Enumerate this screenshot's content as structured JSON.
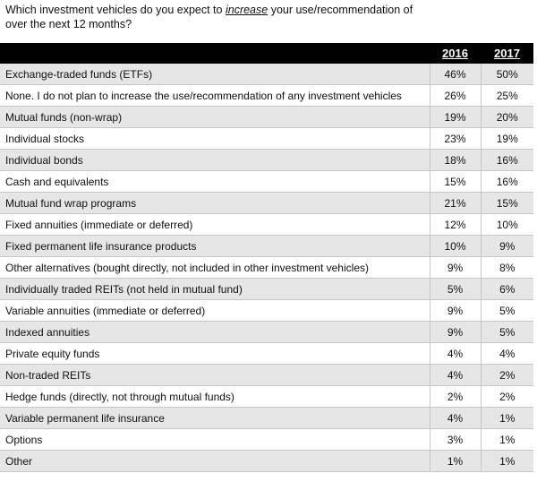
{
  "question": {
    "pre": "Which investment vehicles do you expect to ",
    "emph": "increase",
    "post": " your use/recommendation of over the next 12 months?"
  },
  "table": {
    "headers": [
      "",
      "2016",
      "2017"
    ],
    "rows": [
      {
        "label": "Exchange-traded funds (ETFs)",
        "y2016": "46%",
        "y2017": "50%"
      },
      {
        "label": "None. I do not plan to increase the use/recommendation of any investment vehicles",
        "y2016": "26%",
        "y2017": "25%"
      },
      {
        "label": "Mutual funds (non-wrap)",
        "y2016": "19%",
        "y2017": "20%"
      },
      {
        "label": "Individual stocks",
        "y2016": "23%",
        "y2017": "19%"
      },
      {
        "label": "Individual bonds",
        "y2016": "18%",
        "y2017": "16%"
      },
      {
        "label": "Cash and equivalents",
        "y2016": "15%",
        "y2017": "16%"
      },
      {
        "label": "Mutual fund wrap programs",
        "y2016": "21%",
        "y2017": "15%"
      },
      {
        "label": "Fixed annuities (immediate or deferred)",
        "y2016": "12%",
        "y2017": "10%"
      },
      {
        "label": "Fixed permanent life insurance products",
        "y2016": "10%",
        "y2017": "9%"
      },
      {
        "label": "Other alternatives (bought directly, not included in other investment vehicles)",
        "y2016": "9%",
        "y2017": "8%"
      },
      {
        "label": "Individually traded REITs (not held in mutual fund)",
        "y2016": "5%",
        "y2017": "6%"
      },
      {
        "label": "Variable annuities (immediate or deferred)",
        "y2016": "9%",
        "y2017": "5%"
      },
      {
        "label": "Indexed annuities",
        "y2016": "9%",
        "y2017": "5%"
      },
      {
        "label": "Private equity funds",
        "y2016": "4%",
        "y2017": "4%"
      },
      {
        "label": "Non-traded REITs",
        "y2016": "4%",
        "y2017": "2%"
      },
      {
        "label": "Hedge funds (directly, not through mutual funds)",
        "y2016": "2%",
        "y2017": "2%"
      },
      {
        "label": "Variable permanent life insurance",
        "y2016": "4%",
        "y2017": "1%"
      },
      {
        "label": "Options",
        "y2016": "3%",
        "y2017": "1%"
      },
      {
        "label": "Other",
        "y2016": "1%",
        "y2017": "1%"
      }
    ]
  }
}
